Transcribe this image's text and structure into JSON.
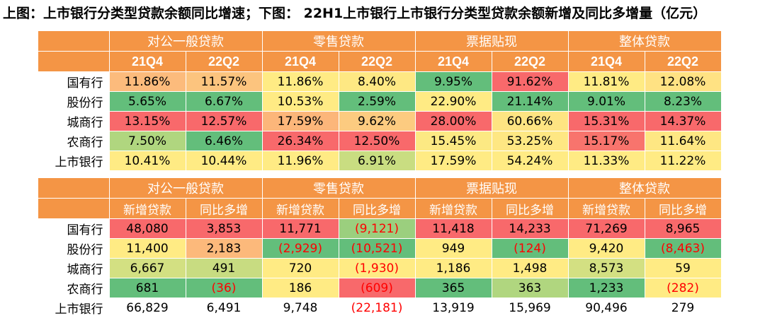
{
  "title": "上图：上市银行分类型贷款余额同比增速；下图： 22H1上市银行上市银行分类型贷款余额新增及同比多增量（亿元）",
  "header_color": "#f49545",
  "table1": {
    "groups": [
      "对公一般贷款",
      "零售贷款",
      "票据贴现",
      "整体贷款"
    ],
    "subheaders": [
      "21Q4",
      "22Q2",
      "21Q4",
      "22Q2",
      "21Q4",
      "22Q2",
      "21Q4",
      "22Q2"
    ],
    "rows": [
      {
        "label": "国有行",
        "cells": [
          {
            "v": "11.86%",
            "bg": "#fcbb7c"
          },
          {
            "v": "11.57%",
            "bg": "#fcc47e"
          },
          {
            "v": "11.86%",
            "bg": "#ffeb84"
          },
          {
            "v": "8.40%",
            "bg": "#fee883"
          },
          {
            "v": "9.95%",
            "bg": "#63be7b"
          },
          {
            "v": "91.62%",
            "bg": "#f8696b"
          },
          {
            "v": "11.81%",
            "bg": "#ffeb84"
          },
          {
            "v": "12.08%",
            "bg": "#ffe283"
          }
        ]
      },
      {
        "label": "股份行",
        "cells": [
          {
            "v": "5.65%",
            "bg": "#63be7b"
          },
          {
            "v": "6.67%",
            "bg": "#63be7b"
          },
          {
            "v": "10.53%",
            "bg": "#ffeb84"
          },
          {
            "v": "2.59%",
            "bg": "#63be7b"
          },
          {
            "v": "22.90%",
            "bg": "#ffeb84"
          },
          {
            "v": "21.14%",
            "bg": "#63be7b"
          },
          {
            "v": "9.01%",
            "bg": "#63be7b"
          },
          {
            "v": "8.23%",
            "bg": "#63be7b"
          }
        ]
      },
      {
        "label": "城商行",
        "cells": [
          {
            "v": "13.15%",
            "bg": "#f8696b"
          },
          {
            "v": "12.57%",
            "bg": "#f8696b"
          },
          {
            "v": "17.59%",
            "bg": "#fcb67a"
          },
          {
            "v": "9.62%",
            "bg": "#fccb80"
          },
          {
            "v": "28.00%",
            "bg": "#f8696b"
          },
          {
            "v": "60.66%",
            "bg": "#fee482"
          },
          {
            "v": "15.31%",
            "bg": "#f8696b"
          },
          {
            "v": "14.37%",
            "bg": "#f8696b"
          }
        ]
      },
      {
        "label": "农商行",
        "cells": [
          {
            "v": "7.50%",
            "bg": "#b0d67f"
          },
          {
            "v": "6.46%",
            "bg": "#63be7b"
          },
          {
            "v": "26.34%",
            "bg": "#f8696b"
          },
          {
            "v": "12.50%",
            "bg": "#f8696b"
          },
          {
            "v": "15.45%",
            "bg": "#fce983"
          },
          {
            "v": "53.25%",
            "bg": "#fee783"
          },
          {
            "v": "15.17%",
            "bg": "#f8746d"
          },
          {
            "v": "11.64%",
            "bg": "#fee783"
          }
        ]
      },
      {
        "label": "上市银行",
        "cells": [
          {
            "v": "10.41%",
            "bg": "#ffeb84"
          },
          {
            "v": "10.44%",
            "bg": "#ffeb84"
          },
          {
            "v": "11.96%",
            "bg": "#ffeb84"
          },
          {
            "v": "6.91%",
            "bg": "#c9dd81"
          },
          {
            "v": "17.59%",
            "bg": "#ffeb84"
          },
          {
            "v": "54.24%",
            "bg": "#ffeb84"
          },
          {
            "v": "11.33%",
            "bg": "#ffeb84"
          },
          {
            "v": "11.22%",
            "bg": "#ffeb84"
          }
        ]
      }
    ]
  },
  "table2": {
    "groups": [
      "对公一般贷款",
      "零售贷款",
      "票据贴现",
      "整体贷款"
    ],
    "subheaders": [
      "新增贷款",
      "同比多增",
      "新增贷款",
      "同比多增",
      "新增贷款",
      "同比多增",
      "新增贷款",
      "同比多增"
    ],
    "rows": [
      {
        "label": "国有行",
        "cells": [
          {
            "v": "48,080",
            "bg": "#f8696b"
          },
          {
            "v": "3,853",
            "bg": "#f8696b"
          },
          {
            "v": "11,771",
            "bg": "#f8696b"
          },
          {
            "v": "(9,121)",
            "bg": "#9bcf7e",
            "neg": true
          },
          {
            "v": "11,418",
            "bg": "#f8696b"
          },
          {
            "v": "14,233",
            "bg": "#f8696b"
          },
          {
            "v": "71,269",
            "bg": "#f8696b"
          },
          {
            "v": "8,965",
            "bg": "#f8696b"
          }
        ]
      },
      {
        "label": "股份行",
        "cells": [
          {
            "v": "11,400",
            "bg": "#ffeb84"
          },
          {
            "v": "2,183",
            "bg": "#fcb97b"
          },
          {
            "v": "(2,929)",
            "bg": "#63be7b",
            "neg": true
          },
          {
            "v": "(10,521)",
            "bg": "#63be7b",
            "neg": true
          },
          {
            "v": "949",
            "bg": "#ffeb84"
          },
          {
            "v": "(124)",
            "bg": "#63be7b",
            "neg": true
          },
          {
            "v": "9,420",
            "bg": "#ffeb84"
          },
          {
            "v": "(8,463)",
            "bg": "#63be7b",
            "neg": true
          }
        ]
      },
      {
        "label": "城商行",
        "cells": [
          {
            "v": "6,667",
            "bg": "#d3e082"
          },
          {
            "v": "491",
            "bg": "#c8dc81"
          },
          {
            "v": "720",
            "bg": "#ffeb84"
          },
          {
            "v": "(1,930)",
            "bg": "#ffeb84",
            "neg": true
          },
          {
            "v": "1,186",
            "bg": "#ffeb84"
          },
          {
            "v": "1,498",
            "bg": "#ffeb84"
          },
          {
            "v": "8,573",
            "bg": "#d3e082"
          },
          {
            "v": "59",
            "bg": "#ffeb84"
          }
        ]
      },
      {
        "label": "农商行",
        "cells": [
          {
            "v": "681",
            "bg": "#63be7b"
          },
          {
            "v": "(36)",
            "bg": "#63be7b",
            "neg": true
          },
          {
            "v": "186",
            "bg": "#ffeb84"
          },
          {
            "v": "(609)",
            "bg": "#f8696b",
            "neg": true
          },
          {
            "v": "365",
            "bg": "#63be7b"
          },
          {
            "v": "363",
            "bg": "#b0d67f"
          },
          {
            "v": "1,233",
            "bg": "#63be7b"
          },
          {
            "v": "(282)",
            "bg": "#ffeb84",
            "neg": true
          }
        ]
      },
      {
        "label": "上市银行",
        "cells": [
          {
            "v": "66,829",
            "bg": "#ffffff"
          },
          {
            "v": "6,491",
            "bg": "#ffffff"
          },
          {
            "v": "9,748",
            "bg": "#ffffff"
          },
          {
            "v": "(22,181)",
            "bg": "#ffffff",
            "neg": true
          },
          {
            "v": "13,919",
            "bg": "#ffffff"
          },
          {
            "v": "15,969",
            "bg": "#ffffff"
          },
          {
            "v": "90,496",
            "bg": "#ffffff"
          },
          {
            "v": "279",
            "bg": "#ffffff"
          }
        ]
      }
    ]
  }
}
